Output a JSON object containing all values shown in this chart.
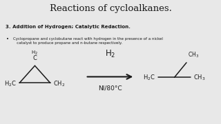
{
  "title": "Reactions of cycloalkanes.",
  "section_header": "3. Addition of Hydrogen; Catalytic Redaction.",
  "bullet_text": "Cyclopropane and cyclobutane react with hydrogen in the presence of a nickel\n   catalyst to produce propane and n-butane respectively.",
  "reagent_top": "H$_2$",
  "reagent_bottom": "NI/80°C",
  "background_color": "#e8e8e8",
  "text_color": "#1a1a1a",
  "title_fontsize": 9.5,
  "header_fontsize": 5.0,
  "bullet_fontsize": 4.0,
  "chem_fontsize": 6.0,
  "arrow_color": "#1a1a1a"
}
